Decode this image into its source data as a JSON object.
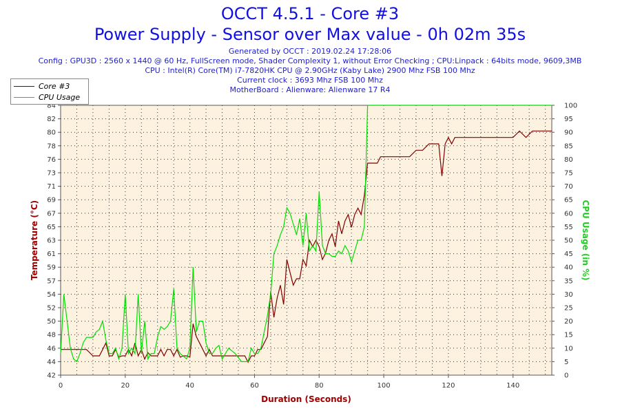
{
  "header": {
    "title": "OCCT 4.5.1 - Core #3",
    "subtitle": "Power Supply - Sensor over Max value - 0h 02m 35s",
    "info_lines": [
      "Generated by OCCT : 2019.02.24 17:28:06",
      "Config : GPU3D : 2560 x 1440 @ 60 Hz, FullScreen mode, Shader Complexity 1, without Error Checking ; CPU:Linpack : 64bits mode, 9609,3MB",
      "CPU : Intel(R) Core(TM) i7-7820HK CPU @ 2.90GHz (Kaby Lake) 2900 Mhz FSB 100 Mhz",
      "Current clock : 3693 Mhz FSB 100 Mhz",
      "MotherBoard : Alienware: Alienware 17 R4"
    ]
  },
  "colors": {
    "title": "#1010e0",
    "core": "#800000",
    "cpu": "#00dd00",
    "plot_bg": "#fdf1e0",
    "axis_label": "#a00000",
    "right_axis_label": "#22cc22"
  },
  "chart_data": {
    "type": "line",
    "title": "OCCT 4.5.1 - Core #3",
    "xlabel": "Duration (Seconds)",
    "ylabel_left": "Temperature (°C)",
    "ylabel_right": "CPU Usage (in %)",
    "xlim": [
      0,
      152
    ],
    "ylim_left": [
      42,
      84
    ],
    "ylim_right": [
      0,
      100
    ],
    "x_ticks": [
      0,
      20,
      40,
      60,
      80,
      100,
      120,
      140
    ],
    "y_ticks_left": [
      42,
      44,
      46,
      48,
      50,
      52,
      54,
      57,
      59,
      61,
      63,
      65,
      67,
      69,
      71,
      73,
      76,
      78,
      80,
      82,
      84
    ],
    "y_ticks_right": [
      0,
      5,
      10,
      15,
      20,
      25,
      30,
      35,
      40,
      45,
      50,
      55,
      60,
      65,
      70,
      75,
      80,
      85,
      90,
      95,
      100
    ],
    "grid": true,
    "legend": [
      "Core #3",
      "CPU Usage"
    ],
    "series": [
      {
        "name": "Core #3",
        "axis": "left",
        "x": [
          0,
          8,
          10,
          12,
          13,
          14,
          15,
          16,
          17,
          18,
          19,
          20,
          21,
          22,
          23,
          24,
          25,
          26,
          27,
          28,
          29,
          30,
          31,
          32,
          33,
          34,
          35,
          36,
          37,
          38,
          39,
          40,
          41,
          42,
          43,
          44,
          45,
          46,
          47,
          48,
          49,
          50,
          52,
          54,
          56,
          57,
          58,
          59,
          60,
          61,
          62,
          63,
          64,
          65,
          66,
          67,
          68,
          69,
          70,
          71,
          72,
          73,
          74,
          75,
          76,
          77,
          78,
          79,
          80,
          81,
          82,
          83,
          84,
          85,
          86,
          87,
          88,
          89,
          90,
          91,
          92,
          93,
          94,
          95,
          96,
          98,
          99,
          100,
          104,
          108,
          110,
          111,
          112,
          114,
          116,
          117,
          118,
          119,
          120,
          121,
          122,
          124,
          126,
          128,
          130,
          132,
          134,
          136,
          138,
          140,
          142,
          144,
          146,
          148,
          150,
          152
        ],
        "values": [
          46,
          46,
          45,
          45,
          46,
          47,
          45,
          45,
          46,
          44.8,
          45,
          45,
          46,
          45,
          47,
          45,
          46,
          44.5,
          45.5,
          45,
          45,
          45,
          46,
          45,
          46,
          46,
          45,
          46,
          44.8,
          45,
          45,
          44.8,
          50,
          48,
          47,
          46,
          45,
          46,
          45,
          45,
          45,
          45,
          45,
          45,
          45,
          45,
          44,
          45,
          45,
          46,
          46,
          47,
          48,
          55,
          51,
          54,
          56,
          53,
          60,
          58,
          56,
          57,
          57,
          60,
          59,
          63,
          62,
          63,
          62,
          60,
          61,
          63,
          64,
          62,
          66,
          64,
          66,
          67,
          65,
          67,
          68,
          67,
          70,
          75,
          75,
          75,
          76,
          76,
          76,
          76,
          77,
          77,
          77,
          78,
          78,
          78,
          73,
          78,
          79,
          78,
          79,
          79,
          79,
          79,
          79,
          79,
          79,
          79,
          79,
          79,
          80,
          79,
          80,
          80,
          80,
          80
        ]
      },
      {
        "name": "CPU Usage",
        "axis": "right",
        "x": [
          0,
          1,
          2,
          3,
          4,
          5,
          6,
          7,
          8,
          9,
          10,
          11,
          12,
          13,
          14,
          15,
          16,
          17,
          18,
          19,
          20,
          21,
          22,
          23,
          24,
          25,
          26,
          27,
          28,
          29,
          30,
          31,
          32,
          33,
          34,
          35,
          36,
          37,
          38,
          39,
          40,
          41,
          42,
          43,
          44,
          45,
          46,
          47,
          48,
          49,
          50,
          52,
          54,
          56,
          58,
          59,
          60,
          61,
          62,
          63,
          64,
          65,
          66,
          67,
          68,
          69,
          70,
          71,
          72,
          73,
          74,
          75,
          76,
          77,
          78,
          79,
          80,
          81,
          82,
          83,
          84,
          85,
          86,
          87,
          88,
          89,
          90,
          91,
          92,
          93,
          94,
          95,
          96,
          100,
          110,
          120,
          130,
          140,
          152
        ],
        "values": [
          8,
          30,
          20,
          10,
          6,
          5,
          8,
          12,
          14,
          14,
          14,
          16,
          17,
          20,
          13,
          8,
          8,
          10,
          6,
          10,
          30,
          8,
          10,
          8,
          30,
          8,
          20,
          6,
          8,
          8,
          14,
          18,
          17,
          18,
          20,
          32,
          10,
          8,
          7,
          6,
          10,
          40,
          16,
          20,
          20,
          12,
          8,
          8,
          10,
          11,
          6,
          10,
          8,
          5,
          5,
          10,
          8,
          8,
          10,
          16,
          22,
          30,
          45,
          48,
          52,
          55,
          62,
          60,
          56,
          52,
          58,
          48,
          60,
          46,
          48,
          46,
          68,
          48,
          45,
          45,
          44,
          44,
          46,
          45,
          48,
          46,
          42,
          46,
          50,
          50,
          55,
          100,
          100,
          100,
          100,
          100,
          100,
          100,
          100
        ]
      }
    ]
  }
}
